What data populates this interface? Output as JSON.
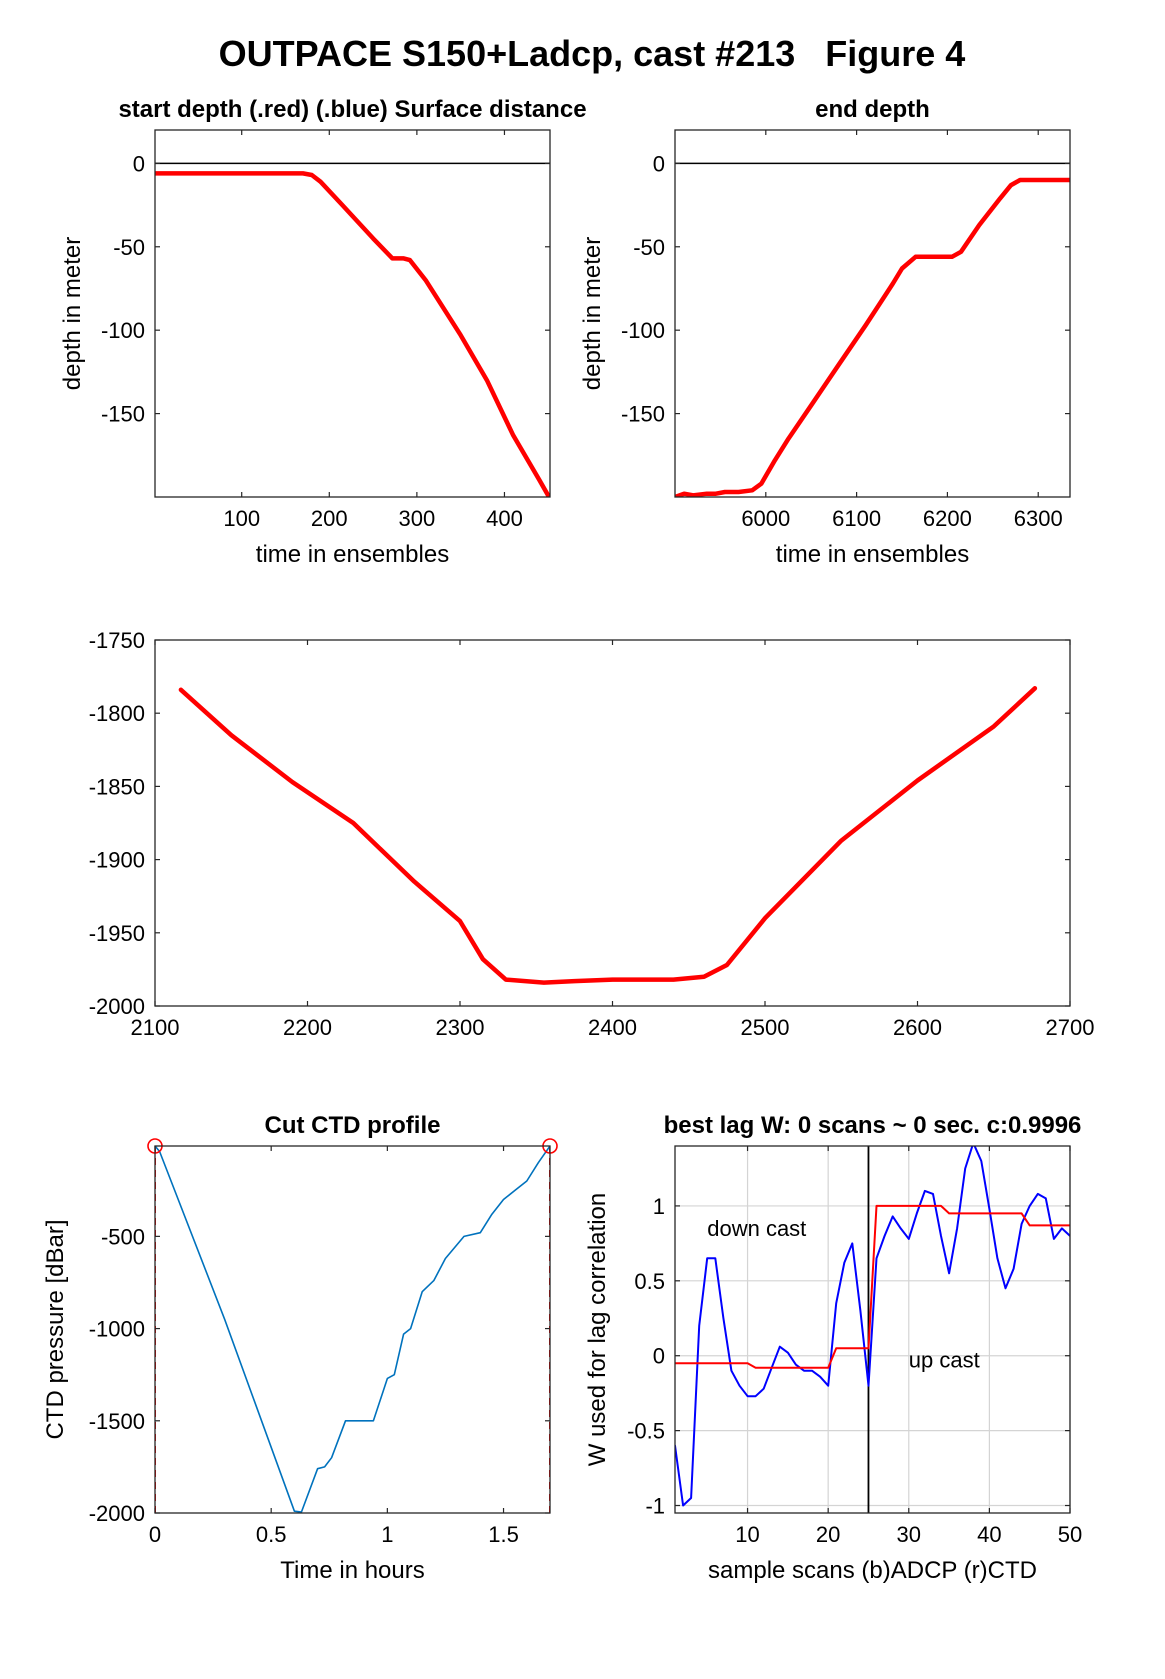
{
  "figure_title": "OUTPACE S150+Ladcp, cast #213   Figure 4",
  "colors": {
    "red": "#ff0000",
    "blue": "#0000ff",
    "ctd_blue": "#0072bd",
    "black": "#000000",
    "grid": "#d4d4d4"
  },
  "chart_data": [
    {
      "id": "start_depth",
      "type": "line",
      "title": "start depth (.red) (.blue) Surface distance",
      "xlabel": "time in ensembles",
      "ylabel": "depth in meter",
      "xlim": [
        1,
        452
      ],
      "ylim": [
        -200,
        20
      ],
      "xticks": [
        100,
        200,
        300,
        400
      ],
      "yticks": [
        0,
        -50,
        -100,
        -150
      ],
      "grid": false,
      "reference_lines": [
        {
          "y": 0,
          "color": "#000000"
        }
      ],
      "series": [
        {
          "color": "#ff0000",
          "x": [
            1,
            100,
            170,
            180,
            190,
            215,
            250,
            272,
            285,
            292,
            310,
            350,
            380,
            410,
            440,
            452
          ],
          "y": [
            -6,
            -6,
            -6,
            -7,
            -11,
            -25,
            -45,
            -57,
            -57,
            -58,
            -70,
            -103,
            -130,
            -163,
            -190,
            -201
          ]
        }
      ]
    },
    {
      "id": "end_depth",
      "type": "line",
      "title": "end depth",
      "xlabel": "time in ensembles",
      "ylabel": "",
      "xlim": [
        5900,
        6335
      ],
      "ylim": [
        -200,
        20
      ],
      "xticks": [
        6000,
        6100,
        6200,
        6300
      ],
      "yticks": [
        0,
        -50,
        -100,
        -150
      ],
      "grid": false,
      "reference_lines": [
        {
          "y": 0,
          "color": "#000000"
        }
      ],
      "series": [
        {
          "color": "#ff0000",
          "x": [
            5900,
            5910,
            5920,
            5935,
            5945,
            5955,
            5970,
            5985,
            5995,
            6010,
            6025,
            6050,
            6080,
            6110,
            6140,
            6150,
            6165,
            6190,
            6205,
            6215,
            6235,
            6258,
            6270,
            6280,
            6335
          ],
          "y": [
            -200,
            -198,
            -199,
            -198,
            -198,
            -197,
            -197,
            -196,
            -192,
            -178,
            -165,
            -145,
            -121,
            -97,
            -72,
            -63,
            -56,
            -56,
            -56,
            -53,
            -37,
            -21,
            -13,
            -10,
            -10
          ]
        }
      ]
    },
    {
      "id": "bottom_depth",
      "type": "line",
      "title": "",
      "xlabel": "",
      "ylabel": "",
      "xlim": [
        2100,
        2700
      ],
      "ylim": [
        -2000,
        -1750
      ],
      "xticks": [
        2100,
        2200,
        2300,
        2400,
        2500,
        2600,
        2700
      ],
      "yticks": [
        -1750,
        -1800,
        -1850,
        -1900,
        -1950,
        -2000
      ],
      "grid": false,
      "series": [
        {
          "color": "#ff0000",
          "x": [
            2117,
            2150,
            2190,
            2230,
            2270,
            2300,
            2315,
            2330,
            2355,
            2375,
            2400,
            2440,
            2460,
            2475,
            2500,
            2550,
            2600,
            2650,
            2677
          ],
          "y": [
            -1784,
            -1815,
            -1847,
            -1875,
            -1915,
            -1942,
            -1968,
            -1982,
            -1984,
            -1983,
            -1982,
            -1982,
            -1980,
            -1972,
            -1940,
            -1887,
            -1846,
            -1809,
            -1783
          ]
        }
      ]
    },
    {
      "id": "cut_ctd",
      "type": "line",
      "title": "Cut CTD profile",
      "xlabel": "Time in hours",
      "ylabel": "CTD pressure [dBar]",
      "xlim": [
        0,
        1.7
      ],
      "ylim": [
        -2000,
        -10
      ],
      "xticks": [
        0,
        0.5,
        1,
        1.5
      ],
      "yticks": [
        -500,
        -1000,
        -1500,
        -2000
      ],
      "grid": false,
      "markers": [
        {
          "x": 0,
          "y": -10,
          "shape": "circle",
          "color": "#ff0000"
        },
        {
          "x": 1.7,
          "y": -10,
          "shape": "circle",
          "color": "#ff0000"
        }
      ],
      "vertical_lines": [
        {
          "x": 0,
          "style": "dashed",
          "color": "#ff0000"
        },
        {
          "x": 1.7,
          "style": "dashed",
          "color": "#ff0000"
        }
      ],
      "series": [
        {
          "color": "#0072bd",
          "x": [
            0,
            0.02,
            0.3,
            0.6,
            0.63,
            0.7,
            0.73,
            0.76,
            0.82,
            0.86,
            0.94,
            1.0,
            1.03,
            1.07,
            1.1,
            1.15,
            1.2,
            1.25,
            1.33,
            1.4,
            1.45,
            1.5,
            1.55,
            1.6,
            1.65,
            1.7
          ],
          "y": [
            -10,
            -40,
            -950,
            -1990,
            -1995,
            -1760,
            -1750,
            -1700,
            -1500,
            -1500,
            -1500,
            -1270,
            -1250,
            -1030,
            -1000,
            -800,
            -740,
            -620,
            -500,
            -480,
            -380,
            -300,
            -250,
            -200,
            -100,
            -10
          ]
        }
      ]
    },
    {
      "id": "best_lag",
      "type": "line",
      "title": "best lag W: 0 scans ~ 0 sec.  c:0.9996",
      "xlabel": "sample scans (b)ADCP (r)CTD",
      "ylabel": "W used for lag correlation",
      "xlim": [
        1,
        50
      ],
      "ylim": [
        -1.05,
        1.4
      ],
      "xticks": [
        10,
        20,
        30,
        40,
        50
      ],
      "yticks": [
        1,
        0.5,
        0,
        -0.5,
        -1
      ],
      "grid": true,
      "vertical_lines": [
        {
          "x": 25,
          "style": "solid",
          "color": "#000000"
        }
      ],
      "annotations": [
        {
          "text": "down cast",
          "x": 5,
          "y": 0.8
        },
        {
          "text": "up cast",
          "x": 30,
          "y": -0.08
        }
      ],
      "series": [
        {
          "name": "(b)ADCP",
          "color": "#0000ff",
          "x": [
            1,
            2,
            3,
            4,
            5,
            6,
            7,
            8,
            9,
            10,
            11,
            12,
            13,
            14,
            15,
            16,
            17,
            18,
            19,
            20,
            21,
            22,
            23,
            24,
            25,
            26,
            27,
            28,
            29,
            30,
            31,
            32,
            33,
            34,
            35,
            36,
            37,
            38,
            39,
            40,
            41,
            42,
            43,
            44,
            45,
            46,
            47,
            48,
            49,
            50
          ],
          "y": [
            -0.6,
            -1.0,
            -0.95,
            0.2,
            0.65,
            0.65,
            0.25,
            -0.1,
            -0.2,
            -0.27,
            -0.27,
            -0.22,
            -0.08,
            0.06,
            0.02,
            -0.06,
            -0.1,
            -0.1,
            -0.14,
            -0.2,
            0.35,
            0.62,
            0.75,
            0.3,
            -0.2,
            0.65,
            0.8,
            0.93,
            0.85,
            0.78,
            0.95,
            1.1,
            1.08,
            0.8,
            0.55,
            0.85,
            1.25,
            1.42,
            1.3,
            0.98,
            0.65,
            0.45,
            0.58,
            0.88,
            1.0,
            1.08,
            1.05,
            0.78,
            0.85,
            0.8
          ]
        },
        {
          "name": "(r)CTD",
          "color": "#ff0000",
          "x": [
            1,
            10,
            11,
            20,
            21,
            25,
            26,
            34,
            35,
            44,
            45,
            50
          ],
          "y": [
            -0.05,
            -0.05,
            -0.08,
            -0.08,
            0.05,
            0.05,
            1.0,
            1.0,
            0.95,
            0.95,
            0.87,
            0.87
          ]
        }
      ]
    }
  ]
}
